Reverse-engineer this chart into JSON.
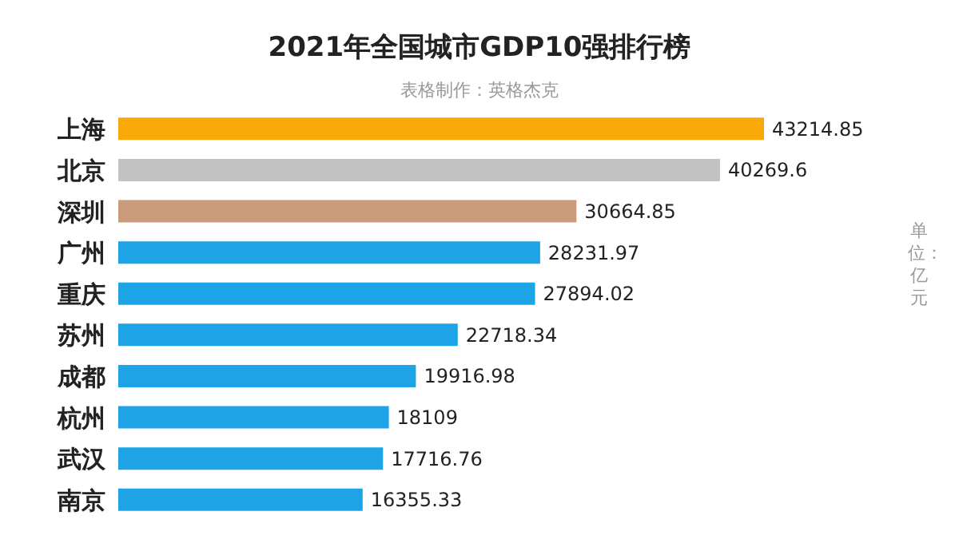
{
  "chart_data": {
    "type": "bar",
    "orientation": "horizontal",
    "title": "2021年全国城市GDP10强排行榜",
    "subtitle": "表格制作：英格杰克",
    "annotations": [
      "单位：亿元"
    ],
    "categories": [
      "上海",
      "北京",
      "深圳",
      "广州",
      "重庆",
      "苏州",
      "成都",
      "杭州",
      "武汉",
      "南京"
    ],
    "values": [
      43214.85,
      40269.6,
      30664.85,
      28231.97,
      27894.02,
      22718.34,
      19916.98,
      18109,
      17716.76,
      16355.33
    ],
    "colors": [
      "#f7a90a",
      "#c2c2c2",
      "#c99a7c",
      "#1ea4e6",
      "#1ea4e6",
      "#1ea4e6",
      "#1ea4e6",
      "#1ea4e6",
      "#1ea4e6",
      "#1ea4e6"
    ],
    "data_labels": true,
    "grid": false,
    "legend": false
  }
}
